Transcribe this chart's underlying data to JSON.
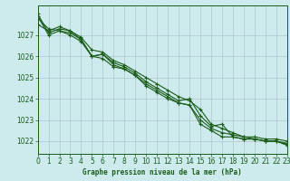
{
  "title": "Graphe pression niveau de la mer (hPa)",
  "bg_color": "#cdeaec",
  "grid_color": "#b0c4cc",
  "line_color": "#1a5c1a",
  "xlim": [
    0,
    23
  ],
  "ylim": [
    1021.4,
    1028.4
  ],
  "yticks": [
    1022,
    1023,
    1024,
    1025,
    1026,
    1027
  ],
  "xticks": [
    0,
    1,
    2,
    3,
    4,
    5,
    6,
    7,
    8,
    9,
    10,
    11,
    12,
    13,
    14,
    15,
    16,
    17,
    18,
    19,
    20,
    21,
    22,
    23
  ],
  "series": [
    [
      1027.9,
      1027.0,
      1027.2,
      1027.1,
      1026.8,
      1026.0,
      1026.1,
      1025.7,
      1025.5,
      1025.2,
      1024.8,
      1024.5,
      1024.2,
      1023.9,
      1024.0,
      1023.2,
      1022.7,
      1022.8,
      1022.2,
      1022.1,
      1022.1,
      1022.0,
      1022.0,
      1021.8
    ],
    [
      1027.8,
      1027.3,
      1027.2,
      1027.0,
      1026.7,
      1026.0,
      1025.9,
      1025.5,
      1025.4,
      1025.1,
      1024.6,
      1024.3,
      1024.0,
      1023.8,
      1023.7,
      1022.8,
      1022.5,
      1022.2,
      1022.2,
      1022.1,
      1022.1,
      1022.0,
      1022.0,
      1021.9
    ],
    [
      1027.5,
      1027.2,
      1027.4,
      1027.2,
      1026.9,
      1026.3,
      1026.2,
      1025.8,
      1025.6,
      1025.3,
      1025.0,
      1024.7,
      1024.4,
      1024.1,
      1023.9,
      1023.5,
      1022.8,
      1022.6,
      1022.4,
      1022.2,
      1022.2,
      1022.1,
      1022.1,
      1022.0
    ],
    [
      1028.0,
      1027.1,
      1027.3,
      1027.2,
      1026.8,
      1026.0,
      1026.1,
      1025.6,
      1025.4,
      1025.1,
      1024.7,
      1024.4,
      1024.1,
      1023.8,
      1023.7,
      1023.0,
      1022.6,
      1022.4,
      1022.3,
      1022.2,
      1022.1,
      1022.0,
      1022.0,
      1021.85
    ]
  ]
}
